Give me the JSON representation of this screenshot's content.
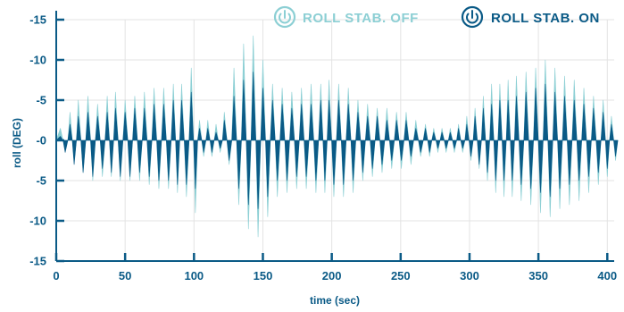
{
  "chart_data": {
    "type": "area",
    "xlabel": "time (sec)",
    "ylabel": "roll (DEG)",
    "xlim": [
      0,
      405
    ],
    "ylim": [
      -15,
      15
    ],
    "y_inverted": true,
    "grid": true,
    "x_ticks": [
      "0",
      "50",
      "100",
      "150",
      "200",
      "250",
      "300",
      "350",
      "400"
    ],
    "x_tick_values": [
      0,
      50,
      100,
      150,
      200,
      250,
      300,
      350,
      400
    ],
    "y_ticks": [
      "-15",
      "-10",
      "-5",
      "-0",
      "-5",
      "-10",
      "-15"
    ],
    "y_tick_values": [
      -15,
      -10,
      -5,
      0,
      5,
      10,
      15
    ],
    "legend_placement": "top-right",
    "series": [
      {
        "name": "ROLL STAB. OFF",
        "color": "#8ccfd4",
        "icon": "power-icon",
        "x": [
          3,
          10,
          16,
          23,
          30,
          37,
          43,
          50,
          57,
          64,
          71,
          78,
          85,
          91,
          98,
          104,
          110,
          116,
          122,
          129,
          136,
          143,
          150,
          157,
          164,
          171,
          178,
          185,
          192,
          198,
          205,
          212,
          219,
          226,
          233,
          240,
          247,
          254,
          261,
          268,
          274,
          280,
          286,
          292,
          298,
          304,
          310,
          316,
          322,
          328,
          334,
          341,
          348,
          355,
          362,
          369,
          376,
          383,
          390,
          397,
          403
        ],
        "peaks": [
          -1.5,
          -3.5,
          -5,
          -5.5,
          -4.5,
          -5.5,
          -6,
          -5,
          -5.5,
          -6,
          -6.5,
          -6.5,
          -7,
          -7,
          -9,
          -2.5,
          -2.5,
          -2,
          -3.5,
          -9,
          -12,
          -13,
          -10,
          -7,
          -6.5,
          -6,
          -6.5,
          -7,
          -7,
          -7.5,
          -7,
          -6.5,
          -5,
          -4.5,
          -4,
          -4,
          -3.5,
          -3.5,
          -2.5,
          -2,
          -1.5,
          -1.5,
          -1.5,
          -2,
          -3,
          -4,
          -5.5,
          -7,
          -7,
          -7.5,
          -8,
          -8.5,
          -9,
          -10,
          -9,
          -8,
          -7.5,
          -6.5,
          -5.5,
          -5,
          -3
        ],
        "troughs": [
          1,
          2.5,
          4,
          5,
          4.5,
          4.5,
          5,
          5,
          5,
          5.5,
          6,
          6,
          6.5,
          7,
          9,
          2,
          2,
          1.5,
          3,
          8,
          11,
          12,
          9.5,
          7,
          6.5,
          6,
          6,
          6.5,
          6.5,
          7,
          7,
          6.5,
          5,
          4.5,
          4,
          3.5,
          3.5,
          3,
          2,
          2,
          1.5,
          1.5,
          1.5,
          1.5,
          2.5,
          3.5,
          5,
          6.5,
          7,
          7,
          7.5,
          8,
          9,
          9.5,
          8.5,
          8,
          7.5,
          6.5,
          5.5,
          4.5,
          2.5
        ]
      },
      {
        "name": "ROLL STAB. ON",
        "color": "#0a5a86",
        "icon": "power-icon",
        "x": [
          3,
          10,
          16,
          23,
          30,
          37,
          43,
          50,
          57,
          64,
          71,
          78,
          85,
          91,
          98,
          104,
          110,
          116,
          122,
          129,
          136,
          143,
          150,
          157,
          164,
          171,
          178,
          185,
          192,
          198,
          205,
          212,
          219,
          226,
          233,
          240,
          247,
          254,
          261,
          268,
          274,
          280,
          286,
          292,
          298,
          304,
          310,
          316,
          322,
          328,
          334,
          341,
          348,
          355,
          362,
          369,
          376,
          383,
          390,
          397,
          403
        ],
        "peaks": [
          -0.5,
          -2,
          -3,
          -3.5,
          -3,
          -3.5,
          -4,
          -3.5,
          -4,
          -4,
          -4.5,
          -4.5,
          -5,
          -5,
          -6,
          -1.5,
          -1.5,
          -1,
          -2.5,
          -5.5,
          -7.5,
          -8.5,
          -6.5,
          -5,
          -4.5,
          -4,
          -4.5,
          -4.5,
          -5,
          -5,
          -5,
          -4.5,
          -3.5,
          -3,
          -3,
          -2.5,
          -2.5,
          -2.5,
          -1.5,
          -1.5,
          -1,
          -1,
          -1,
          -1.5,
          -2,
          -3,
          -4,
          -4.5,
          -5,
          -5,
          -5.5,
          -6,
          -6.5,
          -7,
          -6,
          -5.5,
          -5,
          -4.5,
          -4,
          -3.5,
          -2
        ],
        "troughs": [
          1.5,
          3,
          4,
          4.5,
          3.5,
          4,
          4.5,
          4.5,
          4,
          4.5,
          5,
          5,
          5.5,
          5.5,
          6,
          1.5,
          1.5,
          1,
          2.5,
          6,
          8,
          8.5,
          7,
          5,
          5,
          4.5,
          4.5,
          5,
          5,
          5.5,
          5.5,
          5,
          4,
          3.5,
          3,
          2.5,
          2.5,
          2,
          1.5,
          1.5,
          1,
          1,
          1,
          1,
          2,
          3,
          4,
          5,
          5,
          5,
          5.5,
          6,
          6.5,
          7,
          6,
          5.5,
          5,
          4.5,
          4,
          3.5,
          2
        ]
      }
    ]
  }
}
